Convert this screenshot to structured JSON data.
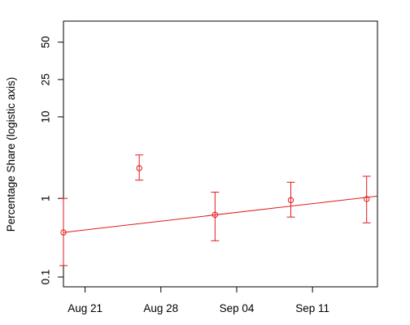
{
  "chart_data": {
    "type": "scatter",
    "title": "",
    "xlabel": "",
    "ylabel": "Percentage Share (logistic axis)",
    "y_scale": "logit",
    "x_ticks": [
      {
        "date": "2021-08-21",
        "label": "Aug 21"
      },
      {
        "date": "2021-08-28",
        "label": "Aug 28"
      },
      {
        "date": "2021-09-04",
        "label": "Sep 04"
      },
      {
        "date": "2021-09-11",
        "label": "Sep 11"
      }
    ],
    "y_ticks": [
      {
        "value": 0.1,
        "label": "0.1"
      },
      {
        "value": 1,
        "label": "1"
      },
      {
        "value": 10,
        "label": "10"
      },
      {
        "value": 25,
        "label": "25"
      },
      {
        "value": 50,
        "label": "50"
      }
    ],
    "xlim": [
      "2021-08-19",
      "2021-09-17"
    ],
    "ylim": [
      0.075,
      65
    ],
    "grid": false,
    "legend": "none",
    "color": "#e31a1c",
    "points": [
      {
        "date": "2021-08-19",
        "value": 0.37,
        "lower": 0.14,
        "upper": 1.0
      },
      {
        "date": "2021-08-26",
        "value": 2.4,
        "lower": 1.7,
        "upper": 3.5
      },
      {
        "date": "2021-09-02",
        "value": 0.62,
        "lower": 0.29,
        "upper": 1.2
      },
      {
        "date": "2021-09-09",
        "value": 0.95,
        "lower": 0.58,
        "upper": 1.6
      },
      {
        "date": "2021-09-16",
        "value": 0.98,
        "lower": 0.49,
        "upper": 1.9
      }
    ],
    "trend_line": {
      "start": {
        "date": "2021-08-19",
        "value": 0.37
      },
      "end": {
        "date": "2021-09-17",
        "value": 1.07
      }
    }
  }
}
